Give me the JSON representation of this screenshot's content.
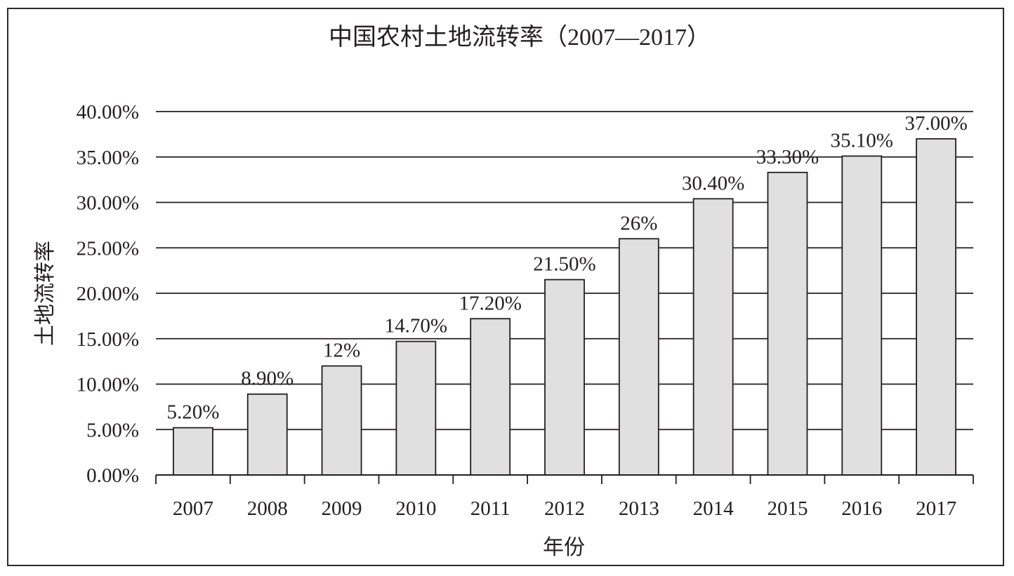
{
  "chart_data": {
    "type": "bar",
    "title": "中国农村土地流转率（2007—2017）",
    "xlabel": "年份",
    "ylabel": "土地流转率",
    "categories": [
      "2007",
      "2008",
      "2009",
      "2010",
      "2011",
      "2012",
      "2013",
      "2014",
      "2015",
      "2016",
      "2017"
    ],
    "values": [
      5.2,
      8.9,
      12,
      14.7,
      17.2,
      21.5,
      26,
      30.4,
      33.3,
      35.1,
      37
    ],
    "data_labels": [
      "5.20%",
      "8.90%",
      "12%",
      "14.70%",
      "17.20%",
      "21.50%",
      "26%",
      "30.40%",
      "33.30%",
      "35.10%",
      "37.00%"
    ],
    "ylim": [
      0,
      40
    ],
    "y_ticks": [
      0,
      5,
      10,
      15,
      20,
      25,
      30,
      35,
      40
    ],
    "y_tick_labels": [
      "0.00%",
      "5.00%",
      "10.00%",
      "15.00%",
      "20.00%",
      "25.00%",
      "30.00%",
      "35.00%",
      "40.00%"
    ],
    "grid": true,
    "legend": "none",
    "colors": {
      "bar_fill": "#e0e0e0",
      "bar_stroke": "#231f20",
      "grid": "#231f20",
      "text": "#231f20",
      "frame": "#2b2b2b"
    }
  }
}
